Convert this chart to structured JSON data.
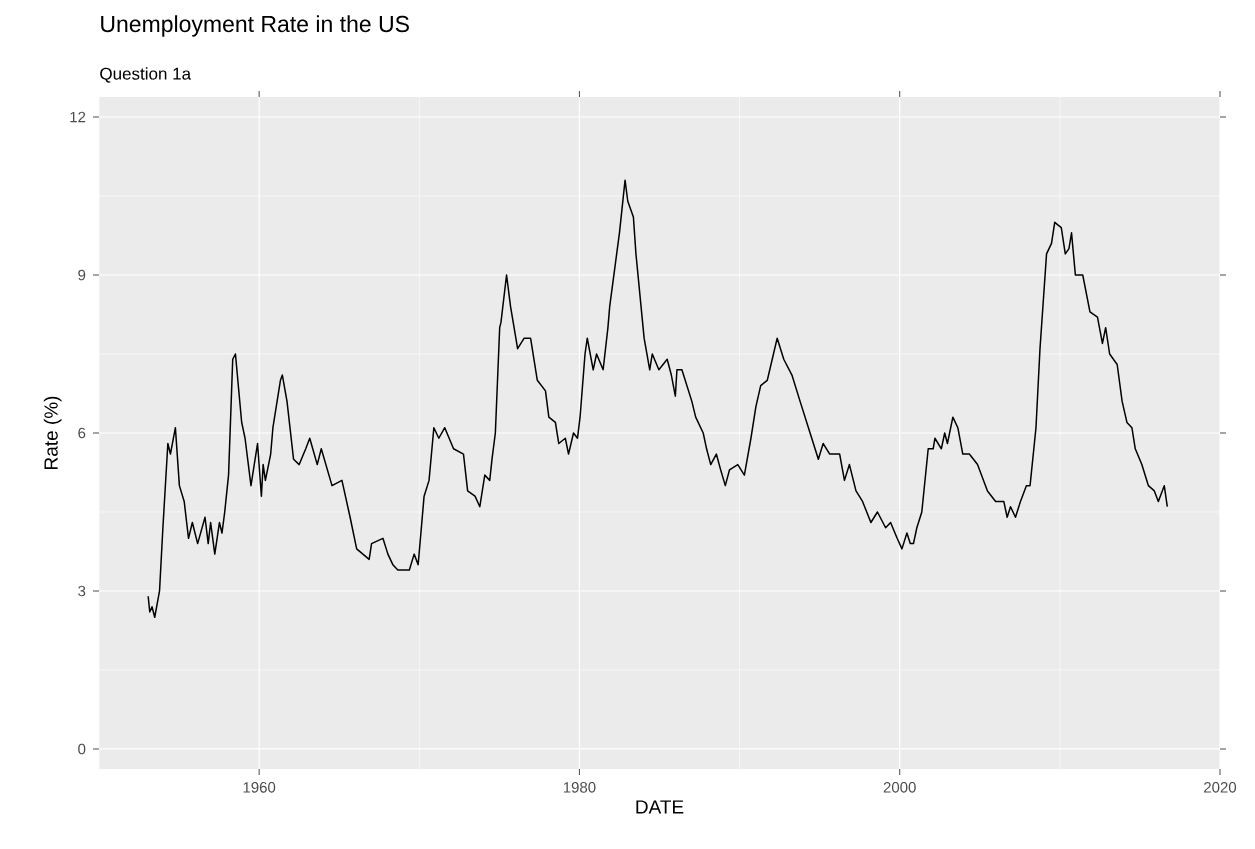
{
  "chart_data": {
    "type": "line",
    "title": "Unemployment Rate in the US",
    "subtitle": "Question 1a",
    "xlabel": "DATE",
    "ylabel": "Rate (%)",
    "xlim": [
      1950,
      2020
    ],
    "ylim": [
      -0.38,
      12.38
    ],
    "xticks": [
      1960,
      1980,
      2000,
      2020
    ],
    "yticks": [
      0,
      3,
      6,
      9,
      12
    ],
    "grid": true,
    "series": [
      {
        "color": "#000000",
        "x": [
          1953.07,
          1953.17,
          1953.31,
          1953.48,
          1953.78,
          1953.99,
          1954.3,
          1954.46,
          1954.77,
          1955.02,
          1955.32,
          1955.59,
          1955.83,
          1956.16,
          1956.62,
          1956.82,
          1956.97,
          1957.23,
          1957.52,
          1957.68,
          1957.85,
          1958.09,
          1958.35,
          1958.52,
          1958.91,
          1959.12,
          1959.49,
          1959.9,
          1960.14,
          1960.25,
          1960.39,
          1960.72,
          1960.86,
          1961.33,
          1961.45,
          1961.74,
          1962.15,
          1962.5,
          1962.91,
          1963.16,
          1963.63,
          1963.88,
          1964.55,
          1965.17,
          1965.68,
          1966.09,
          1966.87,
          1967.02,
          1967.73,
          1968.04,
          1968.35,
          1968.66,
          1969.38,
          1969.68,
          1969.93,
          1970.3,
          1970.61,
          1970.91,
          1971.22,
          1971.59,
          1972.14,
          1972.76,
          1973.02,
          1973.48,
          1973.78,
          1974.09,
          1974.4,
          1974.54,
          1974.75,
          1975.02,
          1975.1,
          1975.45,
          1975.7,
          1976.14,
          1976.55,
          1976.95,
          1977.37,
          1977.88,
          1978.09,
          1978.5,
          1978.71,
          1979.12,
          1979.32,
          1979.63,
          1979.88,
          1980.04,
          1980.35,
          1980.49,
          1980.86,
          1981.07,
          1981.48,
          1981.78,
          1981.89,
          1982.5,
          1982.85,
          1983.02,
          1983.37,
          1983.53,
          1984.04,
          1984.39,
          1984.55,
          1984.96,
          1985.48,
          1985.74,
          1985.99,
          1986.09,
          1986.4,
          1986.71,
          1987.02,
          1987.26,
          1987.73,
          1987.94,
          1988.2,
          1988.55,
          1988.82,
          1989.11,
          1989.37,
          1989.89,
          1990.3,
          1990.71,
          1991.02,
          1991.32,
          1991.73,
          1992.04,
          1992.35,
          1992.76,
          1993.27,
          1993.78,
          1994.3,
          1994.92,
          1995.22,
          1995.63,
          1996.25,
          1996.55,
          1996.86,
          1997.27,
          1997.68,
          1998.2,
          1998.61,
          1999.12,
          1999.43,
          1999.84,
          2000.14,
          2000.45,
          2000.66,
          2000.86,
          2001.07,
          2001.38,
          2001.78,
          2002.09,
          2002.2,
          2002.6,
          2002.81,
          2002.98,
          2003.32,
          2003.63,
          2003.94,
          2004.35,
          2004.86,
          2005.48,
          2005.99,
          2006.5,
          2006.71,
          2006.92,
          2007.23,
          2007.54,
          2007.91,
          2008.14,
          2008.51,
          2008.76,
          2009.17,
          2009.48,
          2009.68,
          2010.09,
          2010.34,
          2010.57,
          2010.73,
          2010.97,
          2011.43,
          2011.88,
          2012.35,
          2012.66,
          2012.86,
          2013.11,
          2013.58,
          2013.89,
          2014.19,
          2014.5,
          2014.71,
          2015.12,
          2015.53,
          2015.9,
          2016.15,
          2016.52,
          2016.71
        ],
        "values": [
          2.9,
          2.6,
          2.7,
          2.5,
          3.0,
          4.2,
          5.8,
          5.6,
          6.1,
          5.0,
          4.7,
          4.0,
          4.3,
          3.9,
          4.4,
          3.9,
          4.3,
          3.7,
          4.3,
          4.1,
          4.5,
          5.2,
          7.4,
          7.5,
          6.2,
          5.9,
          5.0,
          5.8,
          4.8,
          5.4,
          5.1,
          5.6,
          6.1,
          7.0,
          7.1,
          6.6,
          5.5,
          5.4,
          5.7,
          5.9,
          5.4,
          5.7,
          5.0,
          5.1,
          4.4,
          3.8,
          3.6,
          3.9,
          4.0,
          3.7,
          3.5,
          3.4,
          3.4,
          3.7,
          3.5,
          4.8,
          5.1,
          6.1,
          5.9,
          6.1,
          5.7,
          5.6,
          4.9,
          4.8,
          4.6,
          5.2,
          5.1,
          5.5,
          6.0,
          8.0,
          8.1,
          9.0,
          8.4,
          7.6,
          7.8,
          7.8,
          7.0,
          6.8,
          6.3,
          6.2,
          5.8,
          5.9,
          5.6,
          6.0,
          5.9,
          6.3,
          7.5,
          7.8,
          7.2,
          7.5,
          7.2,
          8.0,
          8.4,
          9.8,
          10.8,
          10.4,
          10.1,
          9.4,
          7.8,
          7.2,
          7.5,
          7.2,
          7.4,
          7.1,
          6.7,
          7.2,
          7.2,
          6.9,
          6.6,
          6.3,
          6.0,
          5.7,
          5.4,
          5.6,
          5.3,
          5.0,
          5.3,
          5.4,
          5.2,
          5.9,
          6.5,
          6.9,
          7.0,
          7.4,
          7.8,
          7.4,
          7.1,
          6.6,
          6.1,
          5.5,
          5.8,
          5.6,
          5.6,
          5.1,
          5.4,
          4.9,
          4.7,
          4.3,
          4.5,
          4.2,
          4.3,
          4.0,
          3.8,
          4.1,
          3.9,
          3.9,
          4.2,
          4.5,
          5.7,
          5.7,
          5.9,
          5.7,
          6.0,
          5.8,
          6.3,
          6.1,
          5.6,
          5.6,
          5.4,
          4.9,
          4.7,
          4.7,
          4.4,
          4.6,
          4.4,
          4.7,
          5.0,
          5.0,
          6.1,
          7.6,
          9.4,
          9.6,
          10.0,
          9.9,
          9.4,
          9.5,
          9.8,
          9.0,
          9.0,
          8.3,
          8.2,
          7.7,
          8.0,
          7.5,
          7.3,
          6.6,
          6.2,
          6.1,
          5.7,
          5.4,
          5.0,
          4.9,
          4.7,
          5.0,
          4.6
        ]
      }
    ]
  }
}
